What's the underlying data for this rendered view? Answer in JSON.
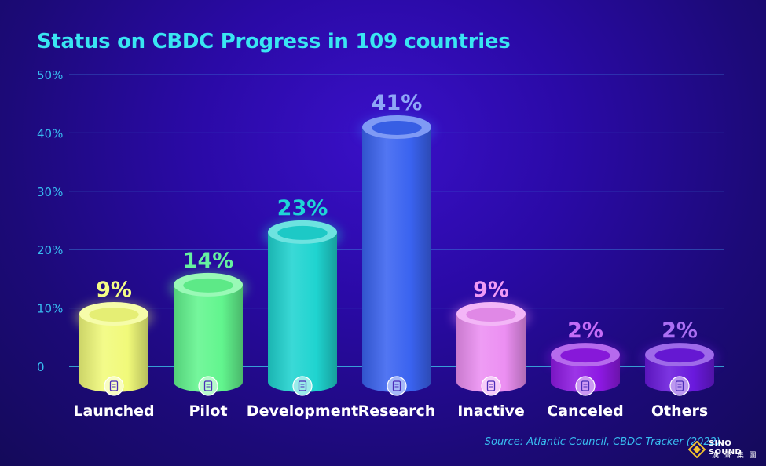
{
  "chart_data": {
    "type": "bar",
    "title": "Status on CBDC Progress in 109 countries",
    "categories": [
      "Launched",
      "Pilot",
      "Development",
      "Research",
      "Inactive",
      "Canceled",
      "Others"
    ],
    "values": [
      9,
      14,
      23,
      41,
      9,
      2,
      2
    ],
    "value_labels": [
      "9%",
      "14%",
      "23%",
      "41%",
      "9%",
      "2%",
      "2%"
    ],
    "colors": [
      "#f1fa7a",
      "#62f58e",
      "#1fd4d0",
      "#3a63f0",
      "#ec8ff2",
      "#8e19e4",
      "#6a19dd"
    ],
    "value_label_colors": [
      "#f4fb86",
      "#66f0a0",
      "#1fd6d6",
      "#8ea6f7",
      "#f09af5",
      "#c46cf7",
      "#ab6ef3"
    ],
    "icons": [
      "rocket-icon",
      "presentation-icon",
      "clipboard-icon",
      "research-icon",
      "document-icon",
      "cancel-document-icon",
      "recycle-icon"
    ],
    "ylim": [
      0,
      50
    ],
    "yticks": [
      0,
      10,
      20,
      30,
      40,
      50
    ],
    "ytick_labels": [
      "0",
      "10%",
      "20%",
      "30%",
      "40%",
      "50%"
    ],
    "grid": true,
    "xlabel": "",
    "ylabel": ""
  },
  "source": "Source: Atlantic Council, CBDC Tracker (2022)",
  "brand": {
    "name": "SINO SOUND",
    "sub": "漢 聲 集 團"
  },
  "theme": {
    "title_color": "#39e6f2",
    "axis_color": "#38bdf0",
    "label_color": "#ffffff"
  }
}
